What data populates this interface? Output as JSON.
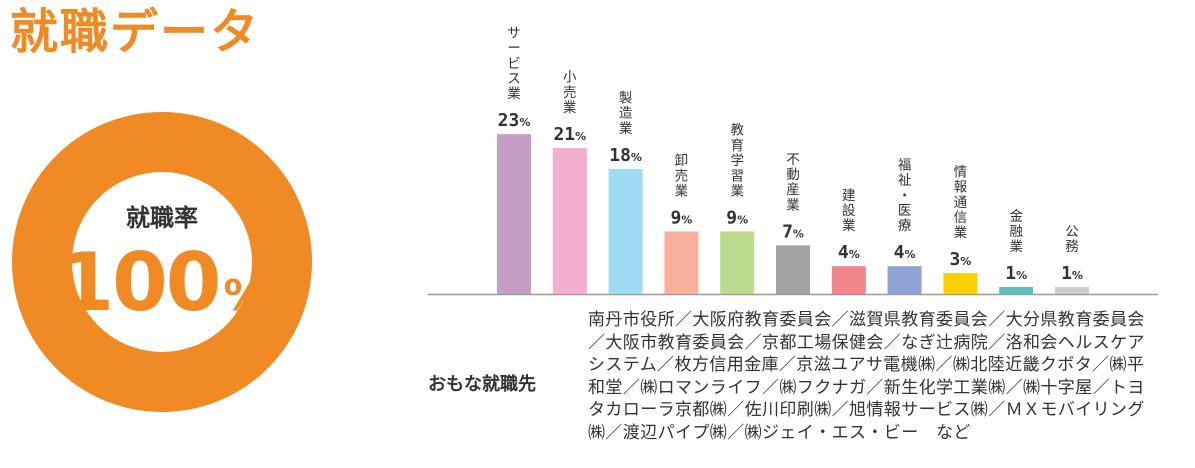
{
  "title": "就職データ",
  "employment_rate": {
    "label": "就職率",
    "value": "100",
    "unit": "%",
    "fraction": 1.0,
    "colors": {
      "ring": "#f08a24",
      "text": "#f08a24"
    }
  },
  "chart_data": {
    "type": "bar",
    "categories": [
      "サービス業",
      "小売業",
      "製造業",
      "卸売業",
      "教育学習業",
      "不動産業",
      "建設業",
      "福祉・医療",
      "情報通信業",
      "金融業",
      "公務"
    ],
    "values": [
      23,
      21,
      18,
      9,
      9,
      7,
      4,
      4,
      3,
      1,
      1
    ],
    "unit": "%",
    "colors": [
      "#c59ec8",
      "#f4aecf",
      "#9fdaf3",
      "#f8b09b",
      "#badb8d",
      "#a3a3a3",
      "#f0858a",
      "#8ea2d3",
      "#fcd003",
      "#5ebfba",
      "#cccccc"
    ],
    "title": "",
    "xlabel": "",
    "ylabel": "",
    "grid": false,
    "legend": "none"
  },
  "employers": {
    "heading": "おもな就職先",
    "text": "南丹市役所／大阪府教育委員会／滋賀県教育委員会／大分県教育委員会／大阪市教育委員会／京都工場保健会／なぎ辻病院／洛和会ヘルスケアシステム／枚方信用金庫／京滋ユアサ電機㈱／㈱北陸近畿クボタ／㈱平和堂／㈱ロマンライフ／㈱フクナガ／新生化学工業㈱／㈱十字屋／トヨタカローラ京都㈱／佐川印刷㈱／旭情報サービス㈱／ＭＸモバイリング㈱／渡辺パイプ㈱／㈱ジェイ・エス・ビー　など"
  }
}
